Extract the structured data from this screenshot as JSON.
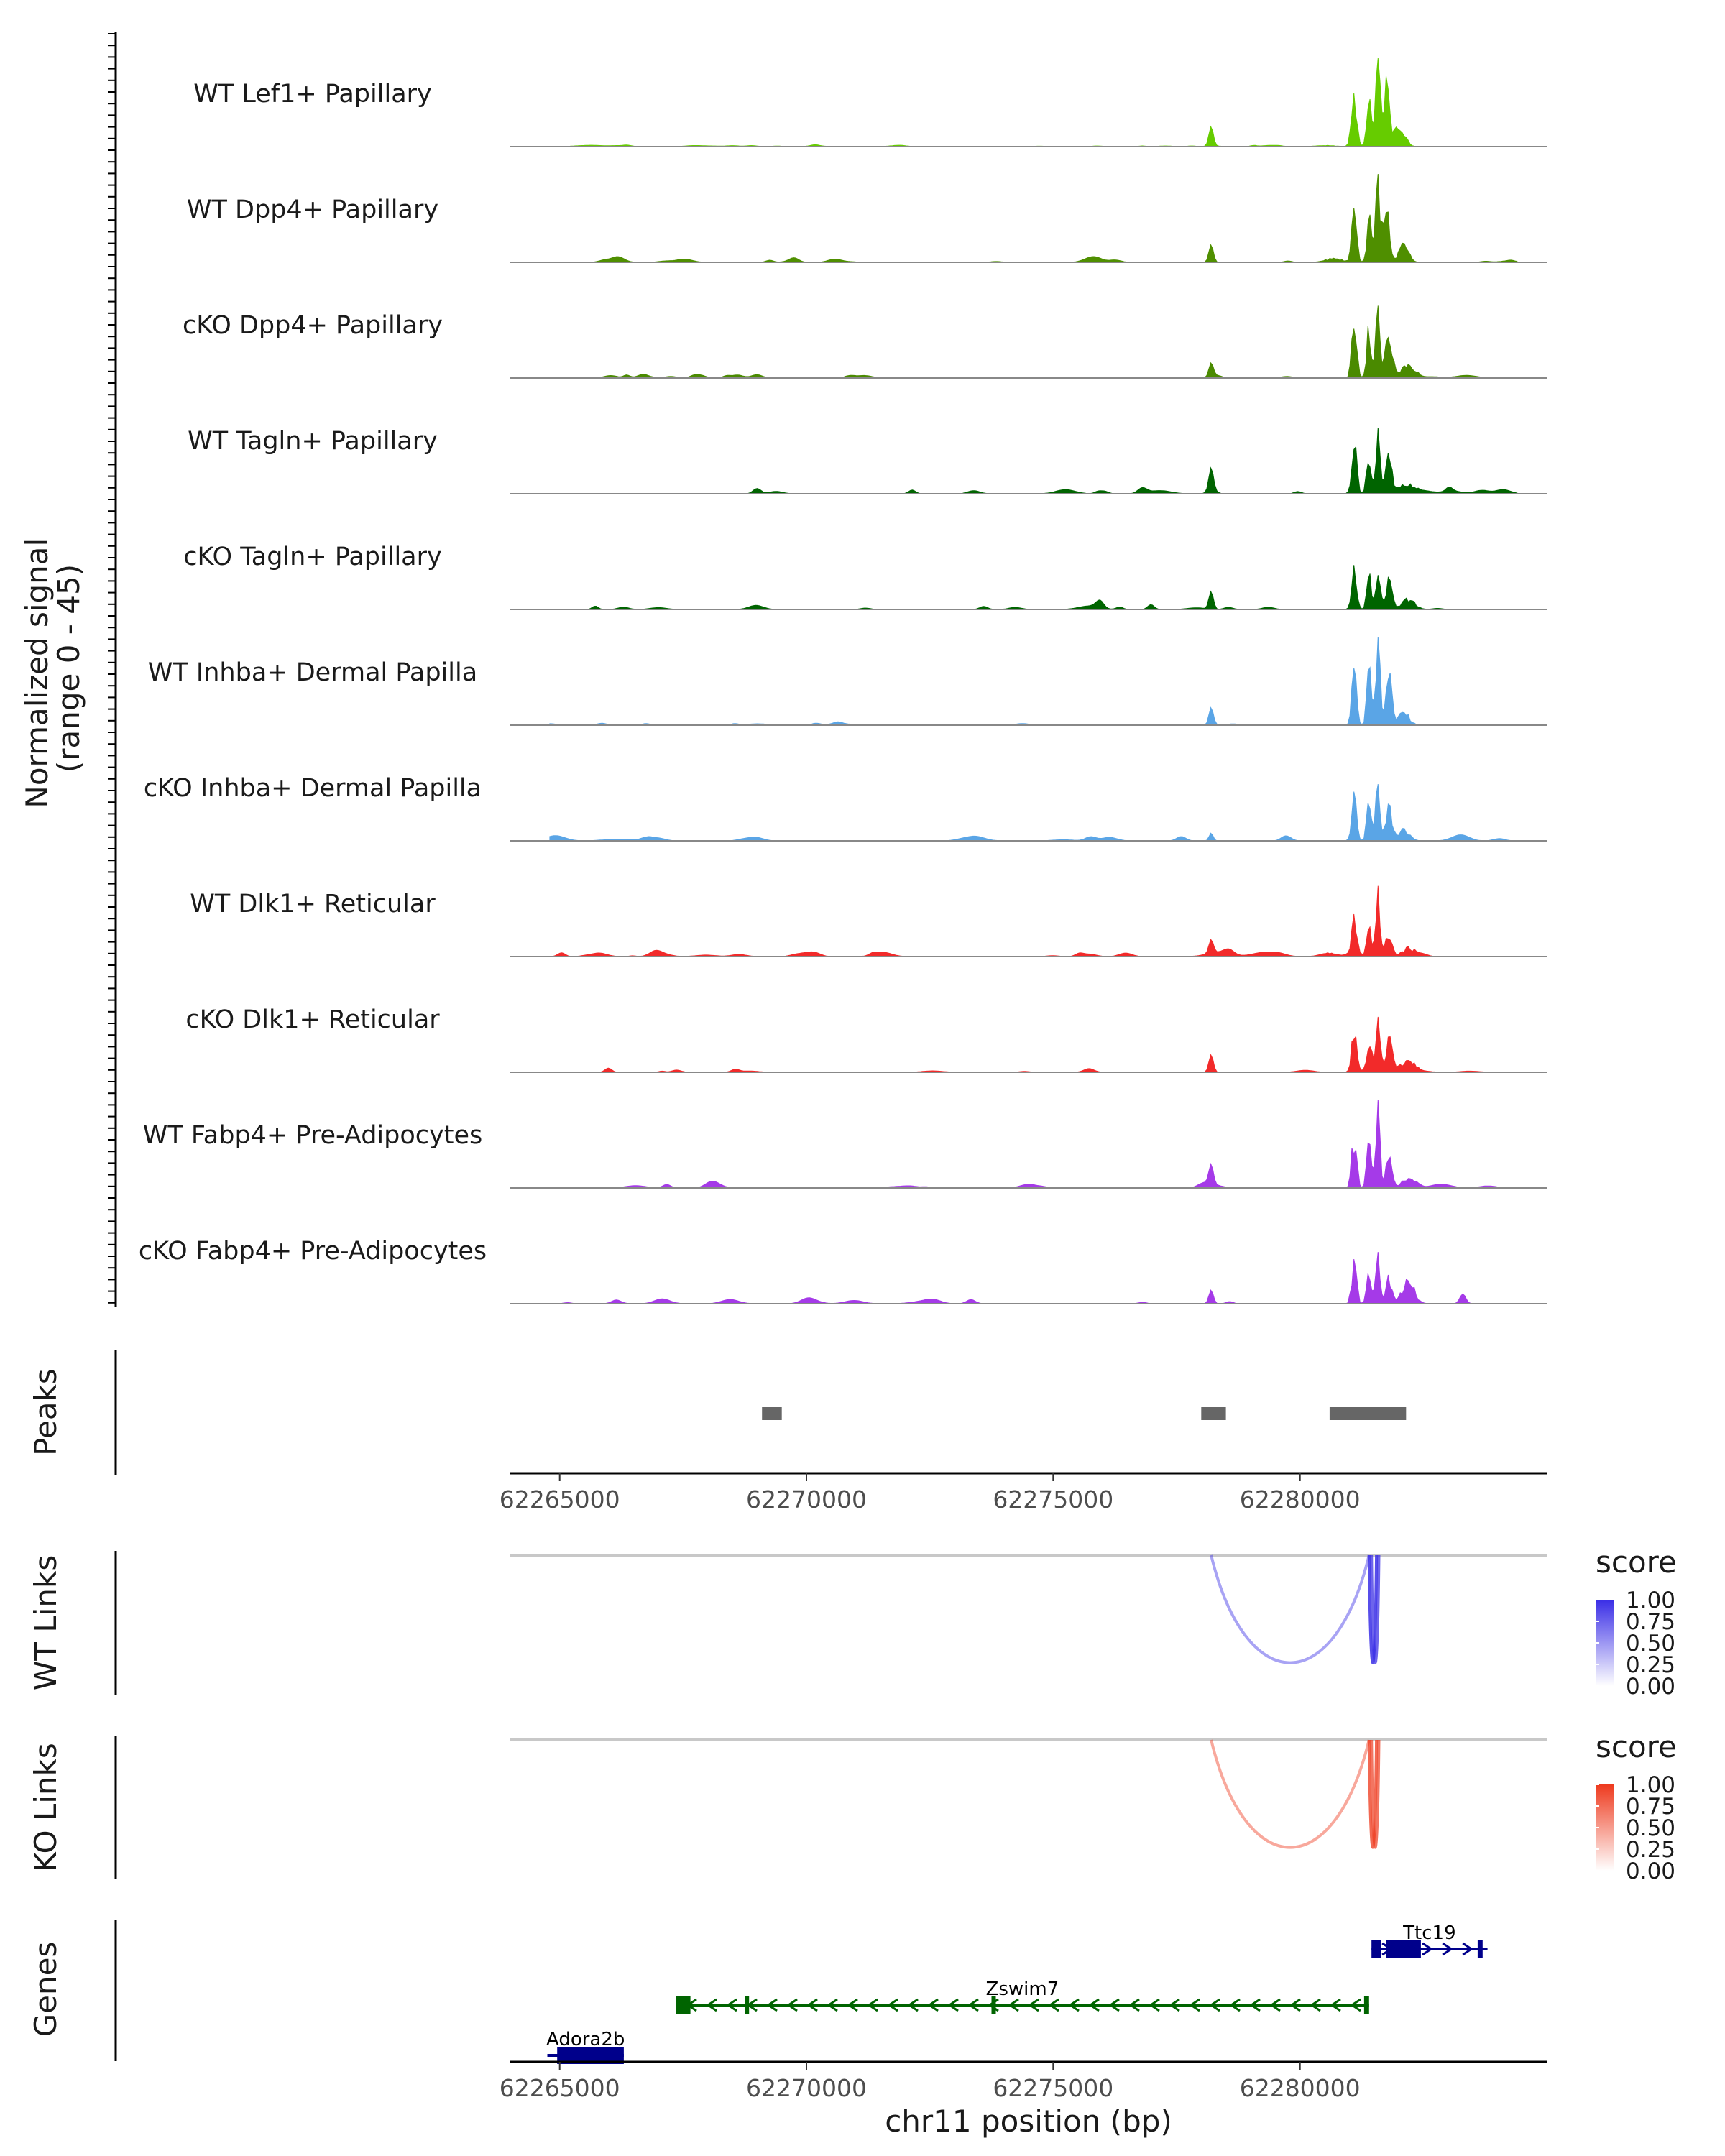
{
  "chart_data": {
    "type": "genome-browser-tracks",
    "region": {
      "chrom": "chr11",
      "start": 62264000,
      "end": 62285000
    },
    "xlabel": "chr11 position (bp)",
    "x_ticks": [
      62265000,
      62270000,
      62275000,
      62280000
    ],
    "x_tick_labels": [
      "62265000",
      "62270000",
      "62275000",
      "62280000"
    ],
    "coverage": {
      "ylabel_line1": "Normalized signal",
      "ylabel_line2": "(range 0 - 45)",
      "ylim": [
        0,
        45
      ],
      "tracks": [
        {
          "label": "WT Lef1+ Papillary",
          "color": "#66CC00",
          "peaks": [
            [
              62278200,
              10,
              45
            ],
            [
              62281100,
              22,
              55
            ],
            [
              62281400,
              26,
              45
            ],
            [
              62281580,
              45,
              45
            ],
            [
              62281750,
              30,
              55
            ],
            [
              62282000,
              12,
              110
            ]
          ],
          "noise": 0.35,
          "sparse": false,
          "seed": 11
        },
        {
          "label": "WT Dpp4+ Papillary",
          "color": "#4F8F00",
          "peaks": [
            [
              62278200,
              9,
              45
            ],
            [
              62281100,
              26,
              50
            ],
            [
              62281400,
              22,
              45
            ],
            [
              62281580,
              44,
              45
            ],
            [
              62281750,
              26,
              60
            ],
            [
              62282100,
              8,
              100
            ]
          ],
          "noise": 1.0,
          "sparse": true,
          "seed": 23
        },
        {
          "label": "cKO Dpp4+ Papillary",
          "color": "#4A8A00",
          "peaks": [
            [
              62278200,
              7,
              45
            ],
            [
              62281100,
              25,
              50
            ],
            [
              62281400,
              24,
              45
            ],
            [
              62281580,
              30,
              45
            ],
            [
              62281800,
              18,
              70
            ],
            [
              62282200,
              7,
              130
            ]
          ],
          "noise": 0.9,
          "sparse": true,
          "seed": 37
        },
        {
          "label": "WT Tagln+ Papillary",
          "color": "#006400",
          "peaks": [
            [
              62278200,
              11,
              45
            ],
            [
              62281100,
              24,
              50
            ],
            [
              62281400,
              19,
              45
            ],
            [
              62281580,
              30,
              45
            ],
            [
              62281800,
              14,
              60
            ],
            [
              62282200,
              4,
              120
            ]
          ],
          "noise": 1.6,
          "sparse": true,
          "seed": 41
        },
        {
          "label": "cKO Tagln+ Papillary",
          "color": "#006400",
          "peaks": [
            [
              62278200,
              9,
              45
            ],
            [
              62281100,
              20,
              50
            ],
            [
              62281400,
              20,
              45
            ],
            [
              62281580,
              19,
              45
            ],
            [
              62281800,
              13,
              70
            ],
            [
              62282200,
              5,
              130
            ]
          ],
          "noise": 1.5,
          "sparse": true,
          "seed": 53
        },
        {
          "label": "WT Inhba+ Dermal Papilla",
          "color": "#5AA5E6",
          "peaks": [
            [
              62278200,
              9,
              45
            ],
            [
              62281100,
              25,
              50
            ],
            [
              62281400,
              26,
              45
            ],
            [
              62281580,
              38,
              45
            ],
            [
              62281800,
              26,
              60
            ],
            [
              62282100,
              6,
              110
            ]
          ],
          "noise": 0.6,
          "sparse": true,
          "seed": 67
        },
        {
          "label": "cKO Inhba+ Dermal Papilla",
          "color": "#5AA5E6",
          "peaks": [
            [
              62278200,
              4,
              40
            ],
            [
              62281100,
              22,
              50
            ],
            [
              62281400,
              20,
              45
            ],
            [
              62281580,
              28,
              45
            ],
            [
              62281800,
              16,
              60
            ],
            [
              62282100,
              6,
              110
            ]
          ],
          "noise": 1.4,
          "sparse": true,
          "seed": 71
        },
        {
          "label": "WT Dlk1+ Reticular",
          "color": "#F22A2A",
          "peaks": [
            [
              62278200,
              7,
              45
            ],
            [
              62281100,
              16,
              50
            ],
            [
              62281400,
              14,
              45
            ],
            [
              62281580,
              30,
              45
            ],
            [
              62281800,
              12,
              60
            ],
            [
              62282200,
              4,
              130
            ]
          ],
          "noise": 1.1,
          "sparse": false,
          "seed": 83
        },
        {
          "label": "cKO Dlk1+ Reticular",
          "color": "#F22A2A",
          "peaks": [
            [
              62278200,
              9,
              45
            ],
            [
              62281100,
              21,
              50
            ],
            [
              62281400,
              17,
              45
            ],
            [
              62281580,
              23,
              45
            ],
            [
              62281800,
              14,
              60
            ],
            [
              62282200,
              5,
              130
            ]
          ],
          "noise": 1.2,
          "sparse": true,
          "seed": 97
        },
        {
          "label": "WT Fabp4+ Pre-Adipocytes",
          "color": "#A53AE8",
          "peaks": [
            [
              62278200,
              10,
              45
            ],
            [
              62281100,
              25,
              50
            ],
            [
              62281400,
              22,
              45
            ],
            [
              62281580,
              41,
              45
            ],
            [
              62281800,
              16,
              60
            ],
            [
              62282200,
              5,
              130
            ]
          ],
          "noise": 1.1,
          "sparse": true,
          "seed": 101
        },
        {
          "label": "cKO Fabp4+ Pre-Adipocytes",
          "color": "#A53AE8",
          "peaks": [
            [
              62278200,
              7,
              45
            ],
            [
              62281100,
              19,
              50
            ],
            [
              62281400,
              18,
              45
            ],
            [
              62281580,
              27,
              45
            ],
            [
              62281800,
              13,
              60
            ],
            [
              62282200,
              7,
              110
            ],
            [
              62283300,
              5,
              60
            ]
          ],
          "noise": 1.3,
          "sparse": true,
          "seed": 113
        }
      ]
    },
    "peaks_track": {
      "label": "Peaks",
      "color": "#666666",
      "intervals": [
        [
          62269100,
          62269500
        ],
        [
          62278000,
          62278500
        ],
        [
          62280600,
          62282150
        ]
      ]
    },
    "links": [
      {
        "label": "WT Links",
        "legend_title": "score",
        "color": "#3A2EE6",
        "legend_ticks": [
          "1.00",
          "0.75",
          "0.50",
          "0.25",
          "0.00"
        ],
        "arcs": [
          {
            "start": 62278200,
            "end": 62281400,
            "score": 0.25
          },
          {
            "start": 62281400,
            "end": 62281550,
            "score": 0.8
          },
          {
            "start": 62281450,
            "end": 62281600,
            "score": 0.65
          }
        ]
      },
      {
        "label": "KO Links",
        "legend_title": "score",
        "color": "#EE3A1E",
        "legend_ticks": [
          "1.00",
          "0.75",
          "0.50",
          "0.25",
          "0.00"
        ],
        "arcs": [
          {
            "start": 62278200,
            "end": 62281400,
            "score": 0.25
          },
          {
            "start": 62281400,
            "end": 62281550,
            "score": 0.7
          },
          {
            "start": 62281450,
            "end": 62281600,
            "score": 0.6
          }
        ]
      }
    ],
    "genes_track": {
      "label": "Genes",
      "genes": [
        {
          "name": "Ttc19",
          "start": 62281450,
          "end": 62283800,
          "strand": "+",
          "color": "#00008B",
          "row": 0,
          "exons": [
            [
              62281450,
              62281650
            ],
            [
              62281750,
              62282450
            ],
            [
              62283600,
              62283700
            ]
          ]
        },
        {
          "name": "Zswim7",
          "start": 62267350,
          "end": 62281400,
          "strand": "-",
          "color": "#006400",
          "row": 1,
          "exons": [
            [
              62267350,
              62267650
            ],
            [
              62268750,
              62268800
            ],
            [
              62273750,
              62273800
            ],
            [
              62281300,
              62281400
            ]
          ]
        },
        {
          "name": "Adora2b",
          "start": 62264750,
          "end": 62266300,
          "strand": "+",
          "color": "#00008B",
          "row": 2,
          "exons": [
            [
              62264950,
              62266300
            ]
          ]
        }
      ]
    }
  }
}
